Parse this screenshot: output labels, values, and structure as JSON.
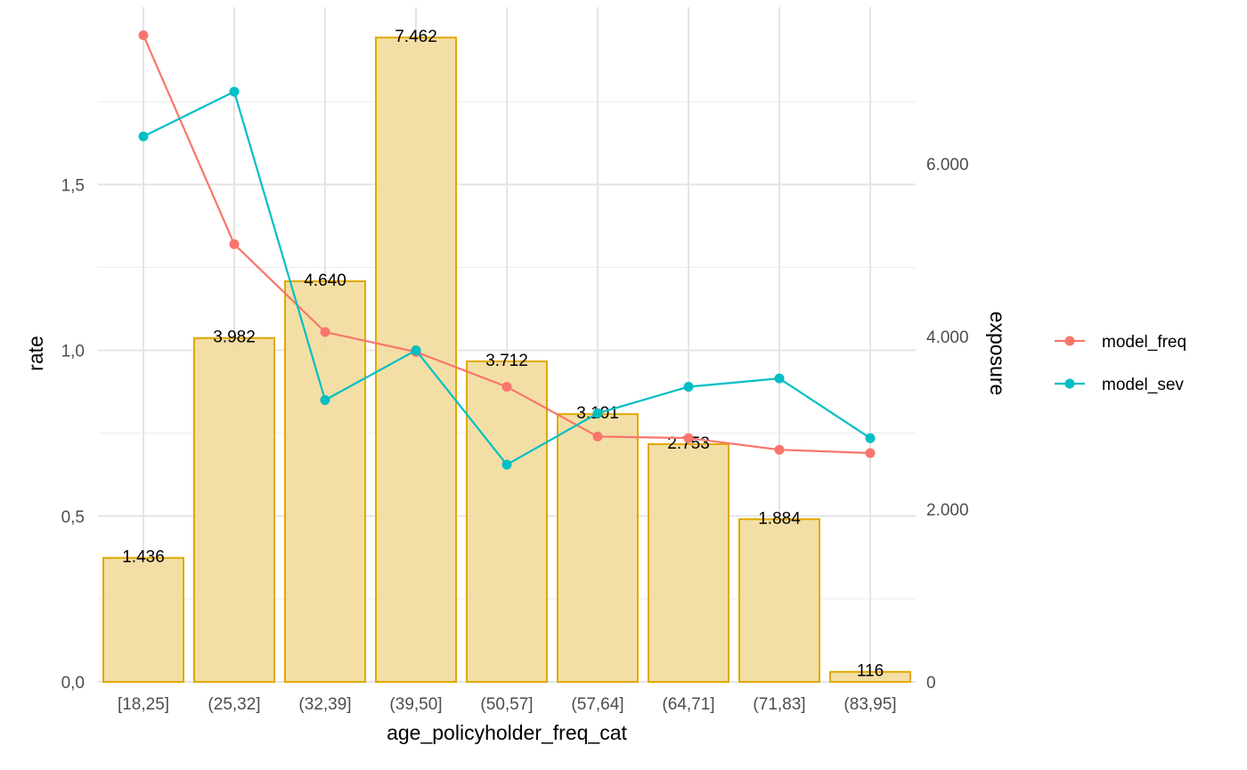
{
  "chart_data": {
    "type": "bar+line",
    "xlabel": "age_policyholder_freq_cat",
    "ylabel_left": "rate",
    "ylabel_right": "exposure",
    "categories": [
      "[18,25]",
      "(25,32]",
      "(32,39]",
      "(39,50]",
      "(50,57]",
      "(57,64]",
      "(64,71]",
      "(71,83]",
      "(83,95]"
    ],
    "ylim_left": [
      0,
      1.9
    ],
    "ylim_right": [
      0,
      7462
    ],
    "left_ticks": [
      {
        "value": 0.0,
        "label": "0,0"
      },
      {
        "value": 0.5,
        "label": "0,5"
      },
      {
        "value": 1.0,
        "label": "1,0"
      },
      {
        "value": 1.5,
        "label": "1,5"
      }
    ],
    "right_ticks": [
      {
        "value": 0,
        "label": "0"
      },
      {
        "value": 2000,
        "label": "2.000"
      },
      {
        "value": 4000,
        "label": "4.000"
      },
      {
        "value": 6000,
        "label": "6.000"
      }
    ],
    "bars": {
      "name": "exposure",
      "axis": "right",
      "values": [
        1436,
        3982,
        4640,
        7462,
        3712,
        3101,
        2753,
        1884,
        116
      ],
      "labels": [
        "1.436",
        "3.982",
        "4.640",
        "7.462",
        "3.712",
        "3.101",
        "2.753",
        "1.884",
        "116"
      ],
      "fill": "#f2dc9b",
      "stroke": "#e0a800"
    },
    "series": [
      {
        "name": "model_freq",
        "axis": "left",
        "color": "#f8766d",
        "values": [
          1.95,
          1.32,
          1.055,
          0.995,
          0.89,
          0.74,
          0.735,
          0.7,
          0.69
        ]
      },
      {
        "name": "model_sev",
        "axis": "left",
        "color": "#00bfc4",
        "values": [
          1.645,
          1.78,
          0.85,
          1.0,
          0.655,
          0.81,
          0.89,
          0.915,
          0.735
        ]
      }
    ],
    "grid": true,
    "legend_position": "right"
  }
}
